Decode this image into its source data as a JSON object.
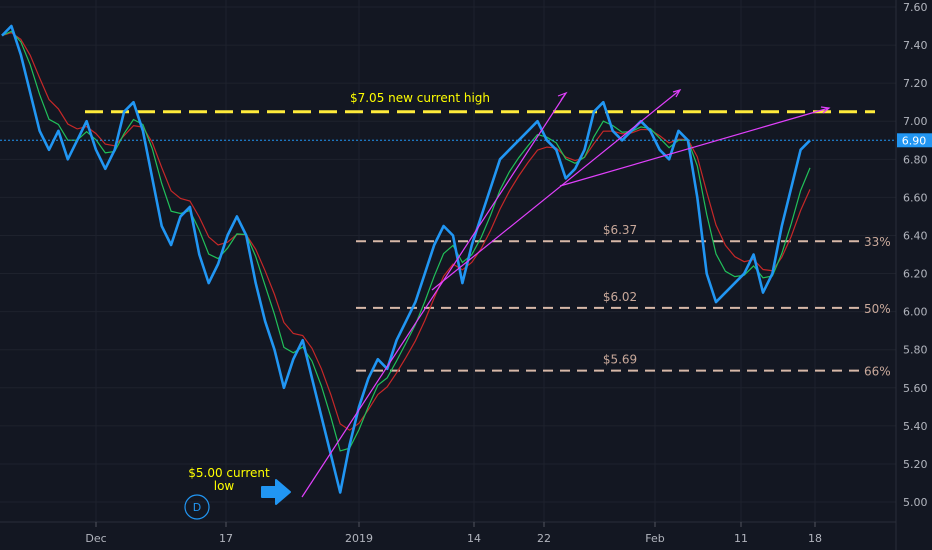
{
  "chart_data": {
    "type": "line",
    "ylim": [
      4.92,
      7.6
    ],
    "y_ticks": [
      "7.60",
      "7.40",
      "7.20",
      "7.00",
      "6.80",
      "6.60",
      "6.40",
      "6.20",
      "6.00",
      "5.80",
      "5.60",
      "5.40",
      "5.20",
      "5.00"
    ],
    "x_ticks": [
      "Dec",
      "17",
      "2019",
      "14",
      "22",
      "Feb",
      "11",
      "18"
    ],
    "last_price_label": "6.90",
    "grid": true,
    "colors": {
      "background": "#131722",
      "price": "#2196f3",
      "ma_fast": "#21c05a",
      "ma_slow": "#c62828",
      "resistance": "#ffeb3b",
      "fib_levels": "#d7b8a8",
      "trendline": "#e040fb",
      "last_price": "#2196f3"
    },
    "series": [
      {
        "values": [
          7.45,
          7.5,
          7.35,
          7.15,
          6.95,
          6.85,
          6.95,
          6.8,
          6.9,
          7.0,
          6.85,
          6.75,
          6.85,
          7.05,
          7.1,
          6.95,
          6.7,
          6.45,
          6.35,
          6.5,
          6.55,
          6.3,
          6.15,
          6.25,
          6.4,
          6.5,
          6.4,
          6.15,
          5.95,
          5.8,
          5.6,
          5.75,
          5.85,
          5.65,
          5.45,
          5.25,
          5.05,
          5.3,
          5.5,
          5.65,
          5.75,
          5.7,
          5.85,
          5.95,
          6.05,
          6.2,
          6.35,
          6.45,
          6.4,
          6.15,
          6.35,
          6.5,
          6.65,
          6.8,
          6.85,
          6.9,
          6.95,
          7.0,
          6.9,
          6.85,
          6.7,
          6.75,
          6.85,
          7.05,
          7.1,
          6.95,
          6.9,
          6.95,
          7.0,
          6.95,
          6.85,
          6.8,
          6.95,
          6.9,
          6.6,
          6.2,
          6.05,
          6.1,
          6.15,
          6.2,
          6.3,
          6.1,
          6.2,
          6.45,
          6.65,
          6.85,
          6.9
        ]
      }
    ],
    "annotations": {
      "resistance_label": "$7.05 new current high",
      "resistance_value": 7.05,
      "low_label_line1": "$5.00 current",
      "low_label_line2": "low",
      "fib_levels": [
        {
          "price_label": "$6.37",
          "value": 6.37,
          "percent_label": "33%"
        },
        {
          "price_label": "$6.02",
          "value": 6.02,
          "percent_label": "50%"
        },
        {
          "price_label": "$5.69",
          "value": 5.69,
          "percent_label": "66%"
        }
      ],
      "interval_badge": "D"
    }
  }
}
